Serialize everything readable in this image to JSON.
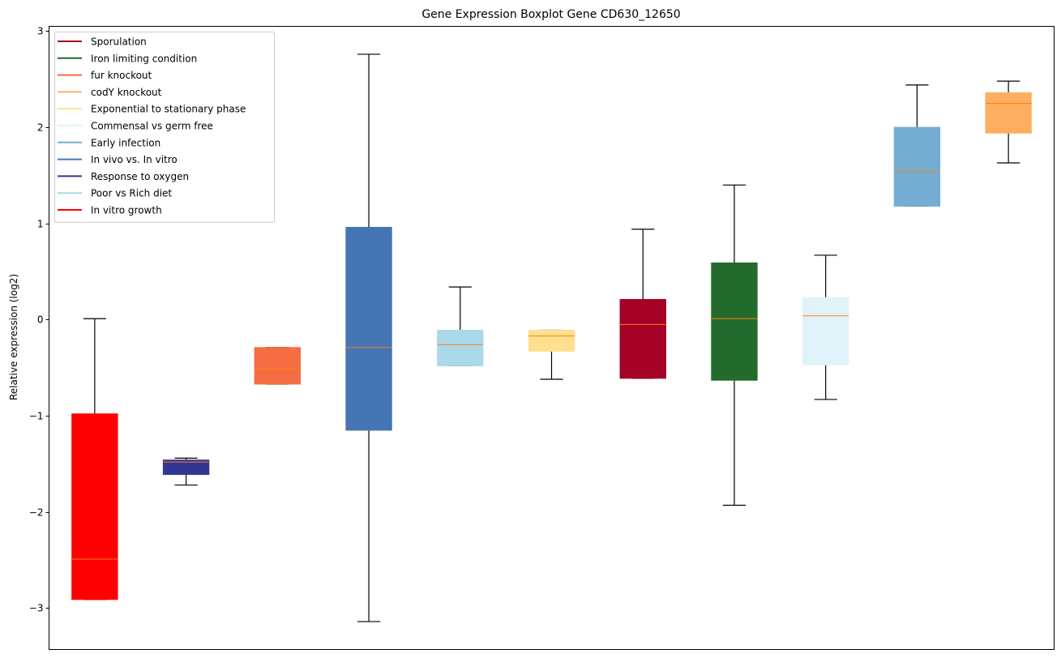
{
  "chart_data": {
    "type": "box",
    "title": "Gene Expression Boxplot Gene CD630_12650",
    "xlabel": "",
    "ylabel": "Relative expression (log2)",
    "ylim": [
      -3.43,
      3.05
    ],
    "yticks": [
      3,
      2,
      1,
      0,
      -1,
      -2,
      -3
    ],
    "ytick_labels": [
      "3",
      "2",
      "1",
      "0",
      "−1",
      "−2",
      "−3"
    ],
    "grid": false,
    "legend_position": "top-left",
    "median_color": "#ff7f0e",
    "legend": [
      {
        "label": "Sporulation",
        "color": "#a50026"
      },
      {
        "label": "Iron limiting condition",
        "color": "#226b2d"
      },
      {
        "label": "fur knockout",
        "color": "#f46d43"
      },
      {
        "label": "codY knockout",
        "color": "#fdae61"
      },
      {
        "label": "Exponential to stationary phase",
        "color": "#fee090"
      },
      {
        "label": "Commensal vs germ free",
        "color": "#e0f3f8"
      },
      {
        "label": "Early infection",
        "color": "#74add1"
      },
      {
        "label": "In vivo vs. In vitro",
        "color": "#4575b4"
      },
      {
        "label": "Response to oxygen",
        "color": "#313695"
      },
      {
        "label": "Poor vs Rich diet",
        "color": "#abd9e9"
      },
      {
        "label": "In vitro growth",
        "color": "#ff0000"
      }
    ],
    "boxes": [
      {
        "condition": "In vitro growth",
        "color": "#ff0000",
        "whislo": -2.91,
        "q1": -2.91,
        "median": -2.49,
        "q3": -0.98,
        "whishi": 0.01
      },
      {
        "condition": "Response to oxygen",
        "color": "#313695",
        "whislo": -1.72,
        "q1": -1.61,
        "median": -1.48,
        "q3": -1.46,
        "whishi": -1.44
      },
      {
        "condition": "fur knockout",
        "color": "#f46d43",
        "whislo": -0.67,
        "q1": -0.67,
        "median": -0.51,
        "q3": -0.29,
        "whishi": -0.29
      },
      {
        "condition": "In vivo vs. In vitro",
        "color": "#4575b4",
        "whislo": -3.14,
        "q1": -1.15,
        "median": -0.29,
        "q3": 0.96,
        "whishi": 2.76
      },
      {
        "condition": "Poor vs Rich diet",
        "color": "#abd9e9",
        "whislo": -0.48,
        "q1": -0.48,
        "median": -0.26,
        "q3": -0.11,
        "whishi": 0.34
      },
      {
        "condition": "Exponential to stationary phase",
        "color": "#fee090",
        "whislo": -0.62,
        "q1": -0.33,
        "median": -0.17,
        "q3": -0.11,
        "whishi": -0.11
      },
      {
        "condition": "Sporulation",
        "color": "#a50026",
        "whislo": -0.61,
        "q1": -0.61,
        "median": -0.05,
        "q3": 0.21,
        "whishi": 0.94
      },
      {
        "condition": "Iron limiting condition",
        "color": "#226b2d",
        "whislo": -1.93,
        "q1": -0.63,
        "median": 0.01,
        "q3": 0.59,
        "whishi": 1.4
      },
      {
        "condition": "Commensal vs germ free",
        "color": "#e0f3f8",
        "whislo": -0.83,
        "q1": -0.47,
        "median": 0.04,
        "q3": 0.23,
        "whishi": 0.67
      },
      {
        "condition": "Early infection",
        "color": "#74add1",
        "whislo": 1.18,
        "q1": 1.18,
        "median": 1.54,
        "q3": 2.0,
        "whishi": 2.44
      },
      {
        "condition": "codY knockout",
        "color": "#fdae61",
        "whislo": 1.63,
        "q1": 1.94,
        "median": 2.25,
        "q3": 2.36,
        "whishi": 2.48
      }
    ]
  }
}
